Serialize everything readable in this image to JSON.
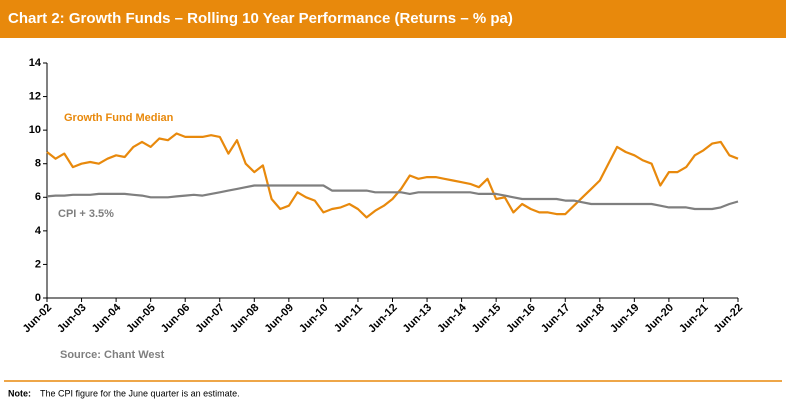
{
  "chart_data": {
    "type": "line",
    "title": "Chart 2:  Growth Funds – Rolling 10 Year Performance (Returns – % pa)",
    "source": "Source: Chant West",
    "note": {
      "label": "Note:",
      "text": "The CPI figure for the June quarter is an estimate."
    },
    "categories": [
      "Jun-02",
      null,
      null,
      null,
      "Jun-03",
      null,
      null,
      null,
      "Jun-04",
      null,
      null,
      null,
      "Jun-05",
      null,
      null,
      null,
      "Jun-06",
      null,
      null,
      null,
      "Jun-07",
      null,
      null,
      null,
      "Jun-08",
      null,
      null,
      null,
      "Jun-09",
      null,
      null,
      null,
      "Jun-10",
      null,
      null,
      null,
      "Jun-11",
      null,
      null,
      null,
      "Jun-12",
      null,
      null,
      null,
      "Jun-13",
      null,
      null,
      null,
      "Jun-14",
      null,
      null,
      null,
      "Jun-15",
      null,
      null,
      null,
      "Jun-16",
      null,
      null,
      null,
      "Jun-17",
      null,
      null,
      null,
      "Jun-18",
      null,
      null,
      null,
      "Jun-19",
      null,
      null,
      null,
      "Jun-20",
      null,
      null,
      null,
      "Jun-21",
      null,
      null,
      null,
      "Jun-22"
    ],
    "series": [
      {
        "name": "Growth Fund Median",
        "color": "#e8890c",
        "values": [
          8.7,
          8.3,
          8.6,
          7.8,
          8.0,
          8.1,
          8.0,
          8.3,
          8.5,
          8.4,
          9.0,
          9.3,
          9.0,
          9.5,
          9.4,
          9.8,
          9.6,
          9.6,
          9.6,
          9.7,
          9.6,
          8.6,
          9.4,
          8.0,
          7.5,
          7.9,
          5.9,
          5.3,
          5.5,
          6.3,
          6.0,
          5.8,
          5.1,
          5.3,
          5.4,
          5.6,
          5.3,
          4.8,
          5.2,
          5.5,
          5.9,
          6.5,
          7.3,
          7.1,
          7.2,
          7.2,
          7.1,
          7.0,
          6.9,
          6.8,
          6.6,
          7.1,
          5.9,
          6.0,
          5.1,
          5.6,
          5.3,
          5.1,
          5.1,
          5.0,
          5.0,
          5.5,
          6.0,
          6.5,
          7.0,
          8.0,
          9.0,
          8.7,
          8.5,
          8.2,
          8.0,
          6.7,
          7.5,
          7.5,
          7.8,
          8.5,
          8.8,
          9.2,
          9.3,
          8.5,
          8.3
        ]
      },
      {
        "name": "CPI + 3.5%",
        "color": "#7f7f7f",
        "values": [
          6.05,
          6.1,
          6.1,
          6.15,
          6.15,
          6.15,
          6.2,
          6.2,
          6.2,
          6.2,
          6.15,
          6.1,
          6.0,
          6.0,
          6.0,
          6.05,
          6.1,
          6.15,
          6.1,
          6.2,
          6.3,
          6.4,
          6.5,
          6.6,
          6.7,
          6.7,
          6.7,
          6.7,
          6.7,
          6.7,
          6.7,
          6.7,
          6.7,
          6.4,
          6.4,
          6.4,
          6.4,
          6.4,
          6.3,
          6.3,
          6.3,
          6.3,
          6.2,
          6.3,
          6.3,
          6.3,
          6.3,
          6.3,
          6.3,
          6.3,
          6.2,
          6.2,
          6.2,
          6.1,
          6.0,
          5.9,
          5.9,
          5.9,
          5.9,
          5.9,
          5.8,
          5.8,
          5.7,
          5.6,
          5.6,
          5.6,
          5.6,
          5.6,
          5.6,
          5.6,
          5.6,
          5.5,
          5.4,
          5.4,
          5.4,
          5.3,
          5.3,
          5.3,
          5.4,
          5.6,
          5.75
        ]
      }
    ],
    "ylim": [
      0,
      14
    ],
    "yticks": [
      0,
      2,
      4,
      6,
      8,
      10,
      12,
      14
    ],
    "grid": false
  }
}
